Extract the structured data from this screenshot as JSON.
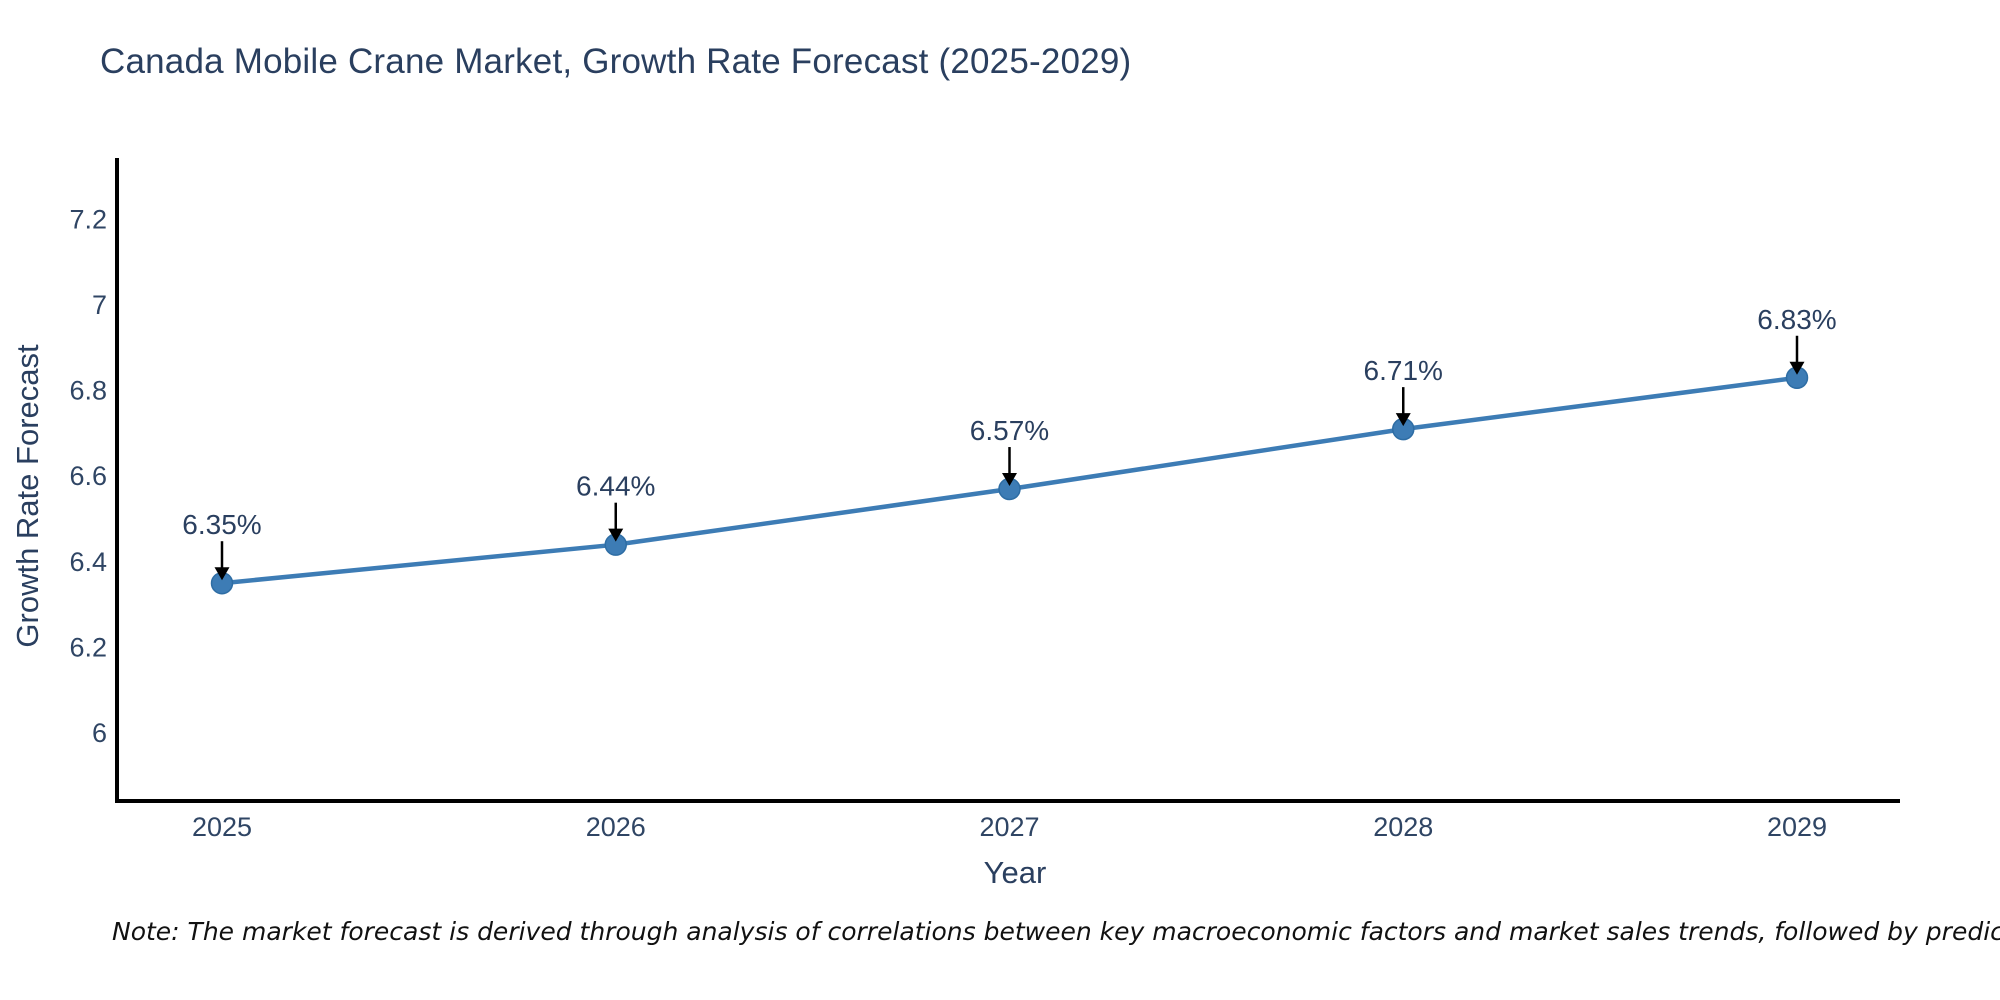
{
  "chart_data": {
    "type": "line",
    "title": "Canada Mobile Crane Market, Growth Rate Forecast (2025-2029)",
    "x": [
      "2025",
      "2026",
      "2027",
      "2028",
      "2029"
    ],
    "y": [
      6.35,
      6.44,
      6.57,
      6.71,
      6.83
    ],
    "point_labels": [
      "6.35%",
      "6.44%",
      "6.57%",
      "6.71%",
      "6.83%"
    ],
    "xlabel": "Year",
    "ylabel": "Growth Rate Forecast",
    "y_tick_labels": [
      "6",
      "6.2",
      "6.4",
      "6.6",
      "6.8",
      "7",
      "7.2"
    ],
    "y_tick_values": [
      6,
      6.2,
      6.4,
      6.6,
      6.8,
      7,
      7.2
    ],
    "ylim": [
      5.83,
      7.34
    ],
    "grid": false,
    "legend": false,
    "annotation_style": "value label with black arrow pointing down to marker",
    "colors": {
      "line": "#3d7cb5",
      "marker": "#3d7cb5",
      "marker_edge": "#2e6da4",
      "arrow": "#000000",
      "axis_line": "#000000",
      "tick_text": "#2f4564",
      "title_text": "#2a3f5f",
      "annotation_text": "#2a3f5f",
      "background": "#ffffff"
    }
  },
  "note": "Note: The market forecast is derived through analysis of correlations between key macroeconomic factors and market sales trends, followed by predictive modeling to project future sales"
}
